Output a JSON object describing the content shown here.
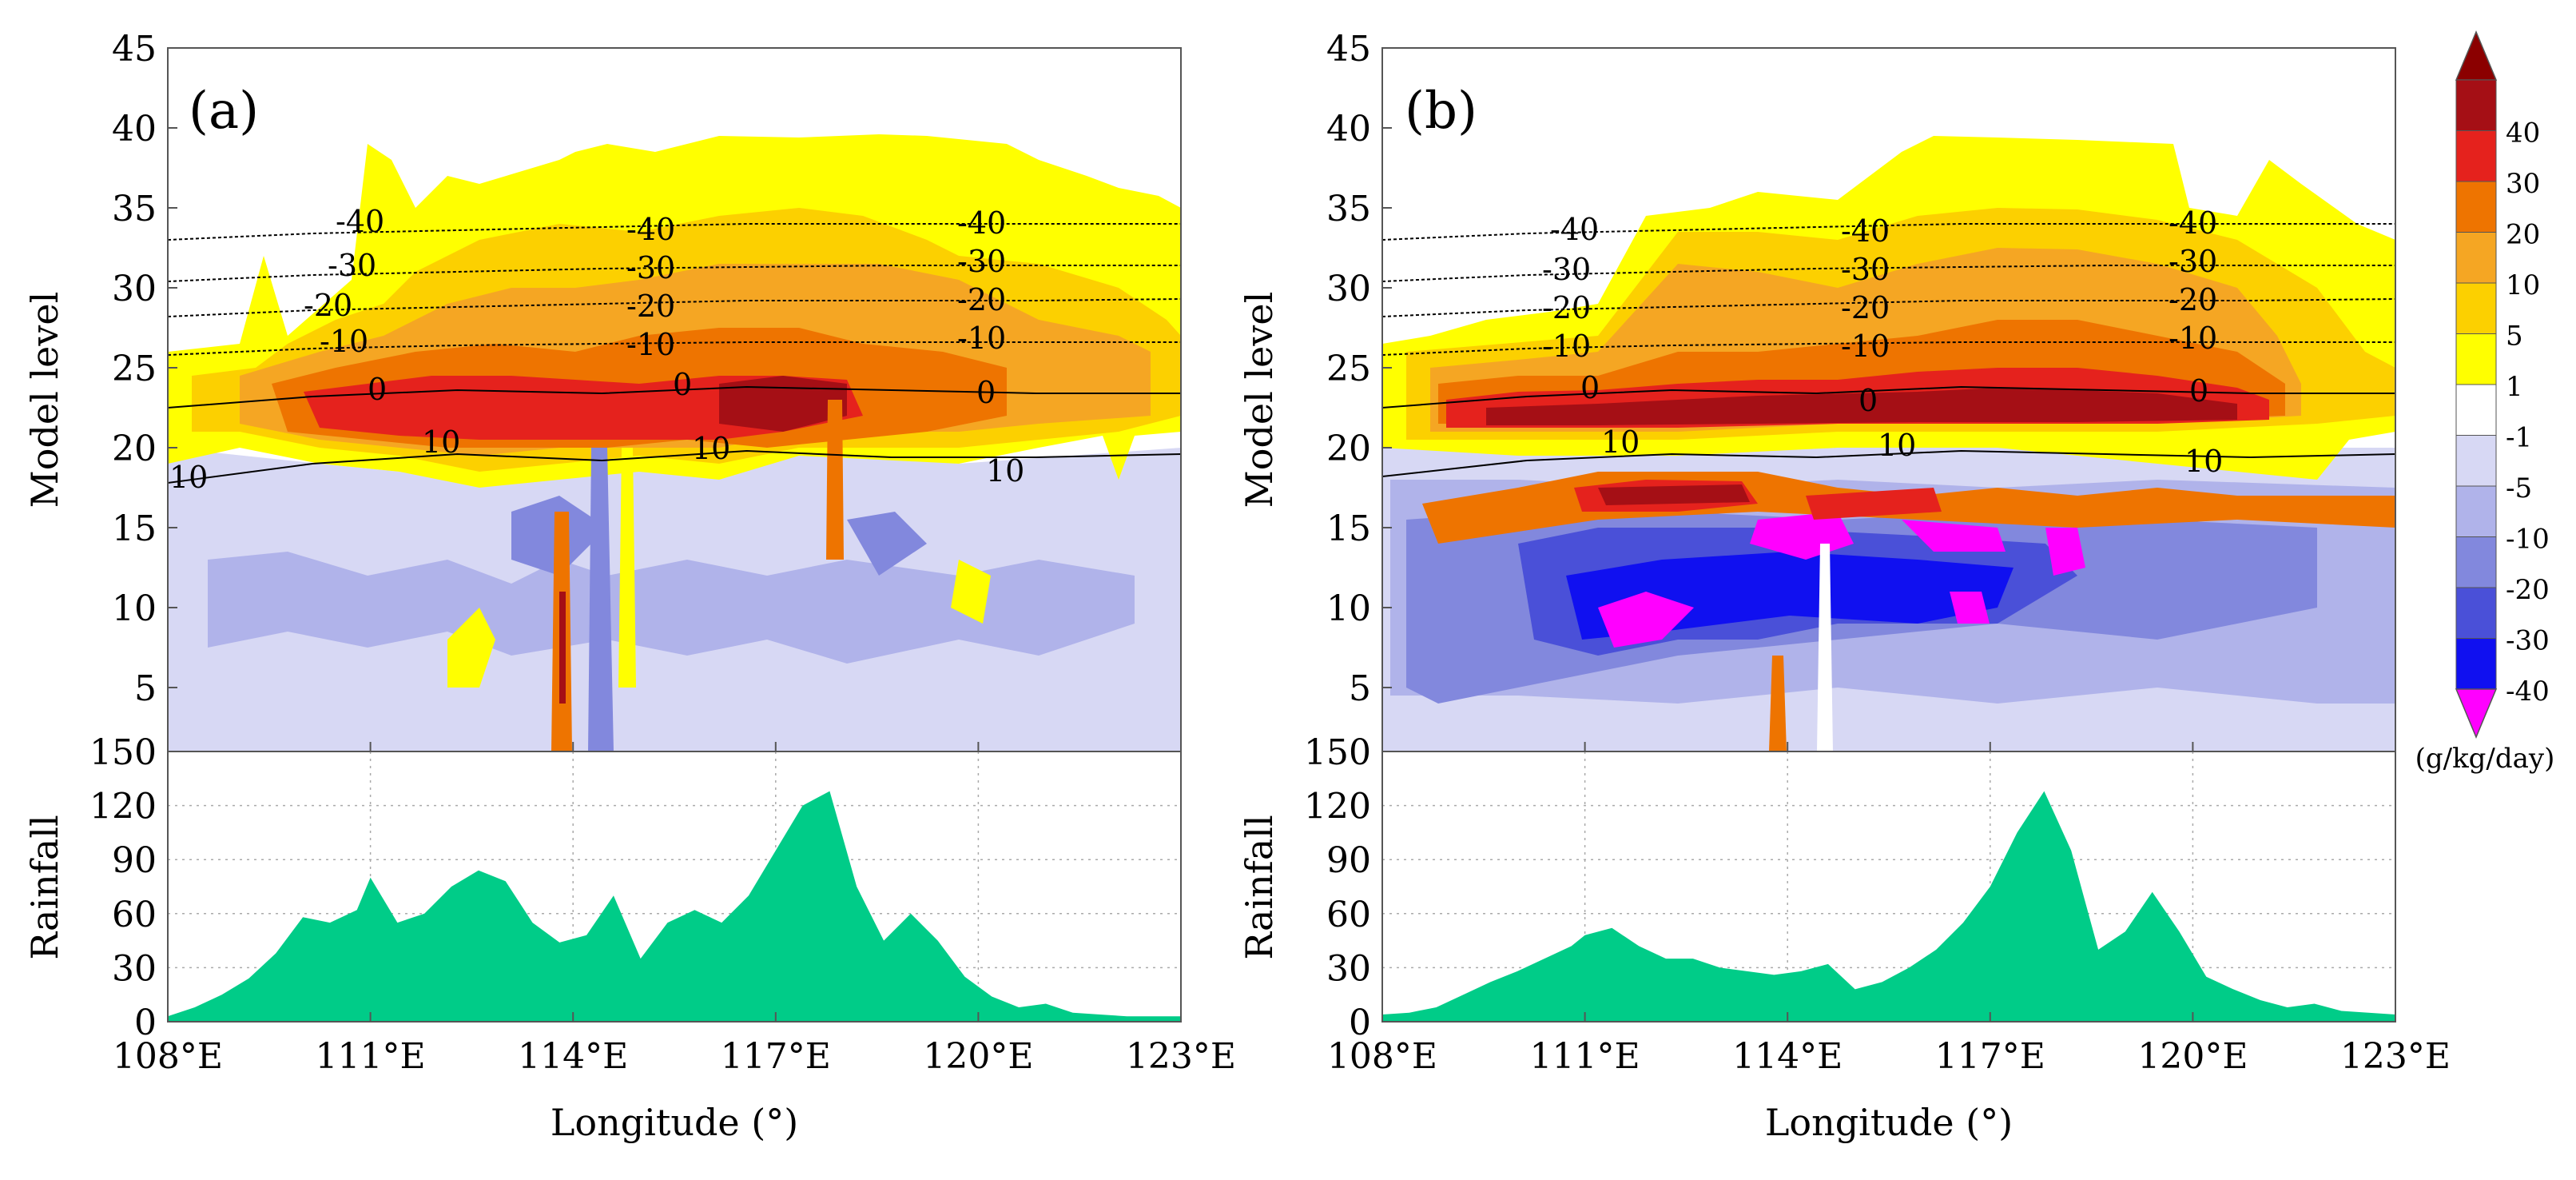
{
  "figure": {
    "xlabel": "Longitude (°)",
    "upper_ylabel": "Model level",
    "lower_ylabel": "Rainfall"
  },
  "chart_data": [
    {
      "type": "heatmap",
      "panel": "(a)",
      "title": "(a)",
      "xlabel": "Longitude (°)",
      "ylabel": "Model level",
      "xlim": [
        108,
        123
      ],
      "ylim": [
        1,
        45
      ],
      "x_ticks": [
        "108°E",
        "111°E",
        "114°E",
        "117°E",
        "120°E",
        "123°E"
      ],
      "y_ticks": [
        5,
        10,
        15,
        20,
        25,
        30,
        35,
        40,
        45
      ],
      "contour_labels": [
        "-40",
        "-30",
        "-20",
        "-10",
        "0",
        "10"
      ],
      "contours": [
        {
          "label": "-40",
          "level": [
            33.0,
            33.4,
            33.6,
            33.8,
            34.0,
            34.0,
            34.0,
            34.0
          ]
        },
        {
          "label": "-30",
          "level": [
            30.4,
            30.8,
            31.0,
            31.2,
            31.3,
            31.4,
            31.4,
            31.4
          ]
        },
        {
          "label": "-20",
          "level": [
            28.2,
            28.6,
            28.8,
            29.0,
            29.2,
            29.2,
            29.2,
            29.3
          ]
        },
        {
          "label": "-10",
          "level": [
            25.8,
            26.2,
            26.4,
            26.5,
            26.6,
            26.6,
            26.6,
            26.6
          ]
        },
        {
          "label": "0",
          "level": [
            22.5,
            23.2,
            23.6,
            23.4,
            23.8,
            23.6,
            23.4,
            23.4
          ]
        },
        {
          "label": "10",
          "level": [
            17.8,
            19.0,
            19.6,
            19.2,
            19.8,
            19.4,
            19.4,
            19.6
          ]
        }
      ]
    },
    {
      "type": "heatmap",
      "panel": "(b)",
      "title": "(b)",
      "xlabel": "Longitude (°)",
      "ylabel": "Model level",
      "xlim": [
        108,
        123
      ],
      "ylim": [
        1,
        45
      ],
      "x_ticks": [
        "108°E",
        "111°E",
        "114°E",
        "117°E",
        "120°E",
        "123°E"
      ],
      "y_ticks": [
        5,
        10,
        15,
        20,
        25,
        30,
        35,
        40,
        45
      ],
      "contour_labels": [
        "-40",
        "-30",
        "-20",
        "-10",
        "0",
        "10"
      ],
      "contours": [
        {
          "label": "-40",
          "level": [
            33.0,
            33.4,
            33.6,
            33.8,
            34.0,
            34.0,
            34.0,
            34.0
          ]
        },
        {
          "label": "-30",
          "level": [
            30.4,
            30.8,
            31.0,
            31.2,
            31.3,
            31.4,
            31.4,
            31.4
          ]
        },
        {
          "label": "-20",
          "level": [
            28.2,
            28.6,
            28.8,
            29.0,
            29.2,
            29.2,
            29.2,
            29.3
          ]
        },
        {
          "label": "-10",
          "level": [
            25.8,
            26.2,
            26.4,
            26.5,
            26.6,
            26.6,
            26.6,
            26.6
          ]
        },
        {
          "label": "0",
          "level": [
            22.5,
            23.2,
            23.6,
            23.4,
            23.8,
            23.6,
            23.4,
            23.4
          ]
        },
        {
          "label": "10",
          "level": [
            18.2,
            19.2,
            19.6,
            19.4,
            19.8,
            19.6,
            19.4,
            19.6
          ]
        }
      ]
    },
    {
      "type": "area",
      "panel": "(a)",
      "ylabel": "Rainfall",
      "xlabel": "Longitude (°)",
      "xlim": [
        108,
        123
      ],
      "ylim": [
        0,
        150
      ],
      "y_ticks": [
        0,
        30,
        60,
        90,
        120,
        150
      ],
      "x": [
        108.0,
        108.4,
        108.8,
        109.2,
        109.6,
        110.0,
        110.4,
        110.8,
        111.0,
        111.4,
        111.8,
        112.2,
        112.6,
        113.0,
        113.4,
        113.8,
        114.2,
        114.6,
        115.0,
        115.4,
        115.8,
        116.2,
        116.6,
        117.0,
        117.4,
        117.8,
        118.2,
        118.6,
        119.0,
        119.4,
        119.8,
        120.2,
        120.6,
        121.0,
        121.4,
        121.8,
        122.2,
        122.6,
        123.0
      ],
      "values": [
        3,
        8,
        15,
        24,
        38,
        58,
        55,
        62,
        80,
        55,
        60,
        75,
        84,
        78,
        55,
        44,
        48,
        70,
        35,
        55,
        62,
        55,
        70,
        95,
        120,
        128,
        75,
        45,
        60,
        45,
        25,
        14,
        8,
        10,
        5,
        4,
        3,
        3,
        3
      ]
    },
    {
      "type": "area",
      "panel": "(b)",
      "ylabel": "Rainfall",
      "xlabel": "Longitude (°)",
      "xlim": [
        108,
        123
      ],
      "ylim": [
        0,
        150
      ],
      "y_ticks": [
        0,
        30,
        60,
        90,
        120,
        150
      ],
      "x": [
        108.0,
        108.4,
        108.8,
        109.2,
        109.6,
        110.0,
        110.4,
        110.8,
        111.0,
        111.4,
        111.8,
        112.2,
        112.6,
        113.0,
        113.4,
        113.8,
        114.2,
        114.6,
        115.0,
        115.4,
        115.8,
        116.2,
        116.6,
        117.0,
        117.4,
        117.8,
        118.2,
        118.6,
        119.0,
        119.4,
        119.8,
        120.2,
        120.6,
        121.0,
        121.4,
        121.8,
        122.2,
        122.6,
        123.0
      ],
      "values": [
        4,
        5,
        8,
        15,
        22,
        28,
        35,
        42,
        48,
        52,
        42,
        35,
        35,
        30,
        28,
        26,
        28,
        32,
        18,
        22,
        30,
        40,
        55,
        75,
        105,
        128,
        95,
        40,
        50,
        72,
        50,
        25,
        18,
        12,
        8,
        10,
        6,
        5,
        4
      ]
    }
  ],
  "colorbar": {
    "unit": "(g/kg/day)",
    "labels": [
      "40",
      "30",
      "20",
      "10",
      "5",
      "1",
      "-1",
      "-5",
      "-10",
      "-20",
      "-30",
      "-40"
    ],
    "colors": [
      "#a50f15",
      "#e5221d",
      "#ee7400",
      "#f5a623",
      "#fcd000",
      "#ffff00",
      "#ffffff",
      "#d7d8f4",
      "#b0b3ea",
      "#8288dd",
      "#4a50d8",
      "#1010f0",
      "#ff00ff"
    ],
    "top_color": "#8b0000",
    "bottom_color": "#ff00ff"
  }
}
